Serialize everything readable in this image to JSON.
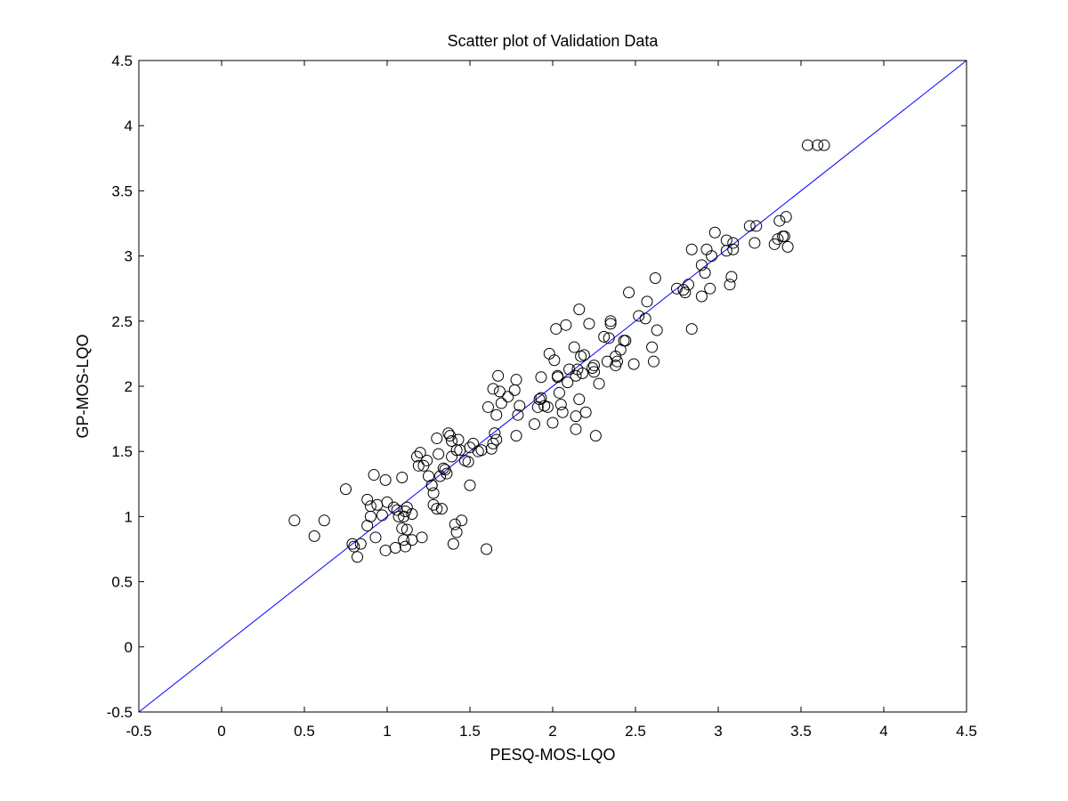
{
  "chart_data": {
    "type": "scatter",
    "title": "Scatter plot of Validation Data",
    "xlabel": "PESQ-MOS-LQO",
    "ylabel": "GP-MOS-LQO",
    "xlim": [
      -0.5,
      4.5
    ],
    "ylim": [
      -0.5,
      4.5
    ],
    "xticks": [
      -0.5,
      0,
      0.5,
      1,
      1.5,
      2,
      2.5,
      3,
      3.5,
      4,
      4.5
    ],
    "yticks": [
      -0.5,
      0,
      0.5,
      1,
      1.5,
      2,
      2.5,
      3,
      3.5,
      4,
      4.5
    ],
    "xtick_labels": [
      "-0.5",
      "0",
      "0.5",
      "1",
      "1.5",
      "2",
      "2.5",
      "3",
      "3.5",
      "4",
      "4.5"
    ],
    "ytick_labels": [
      "-0.5",
      "0",
      "0.5",
      "1",
      "1.5",
      "2",
      "2.5",
      "3",
      "3.5",
      "4",
      "4.5"
    ],
    "grid": false,
    "marker": "open-circle",
    "marker_color": "#000000",
    "reference_line": {
      "from": [
        -0.5,
        -0.5
      ],
      "to": [
        4.5,
        4.5
      ],
      "color": "#0000ff"
    },
    "points": [
      [
        0.44,
        0.97
      ],
      [
        0.56,
        0.85
      ],
      [
        0.62,
        0.97
      ],
      [
        0.75,
        1.21
      ],
      [
        0.79,
        0.79
      ],
      [
        0.8,
        0.77
      ],
      [
        0.82,
        0.69
      ],
      [
        0.84,
        0.79
      ],
      [
        0.88,
        0.93
      ],
      [
        0.88,
        1.13
      ],
      [
        0.9,
        1.08
      ],
      [
        0.9,
        1.0
      ],
      [
        0.92,
        1.32
      ],
      [
        0.93,
        0.84
      ],
      [
        0.94,
        1.09
      ],
      [
        0.97,
        1.01
      ],
      [
        0.99,
        0.74
      ],
      [
        0.99,
        1.28
      ],
      [
        1.0,
        1.11
      ],
      [
        1.04,
        1.07
      ],
      [
        1.05,
        0.76
      ],
      [
        1.06,
        1.05
      ],
      [
        1.07,
        1.0
      ],
      [
        1.09,
        0.91
      ],
      [
        1.09,
        1.3
      ],
      [
        1.1,
        1.0
      ],
      [
        1.1,
        0.82
      ],
      [
        1.11,
        0.77
      ],
      [
        1.11,
        1.04
      ],
      [
        1.12,
        0.9
      ],
      [
        1.12,
        1.07
      ],
      [
        1.15,
        1.02
      ],
      [
        1.15,
        0.82
      ],
      [
        1.18,
        1.46
      ],
      [
        1.19,
        1.39
      ],
      [
        1.2,
        1.49
      ],
      [
        1.21,
        0.84
      ],
      [
        1.22,
        1.39
      ],
      [
        1.24,
        1.43
      ],
      [
        1.25,
        1.31
      ],
      [
        1.27,
        1.24
      ],
      [
        1.27,
        1.24
      ],
      [
        1.28,
        1.18
      ],
      [
        1.28,
        1.09
      ],
      [
        1.3,
        1.6
      ],
      [
        1.3,
        1.06
      ],
      [
        1.31,
        1.48
      ],
      [
        1.32,
        1.31
      ],
      [
        1.33,
        1.06
      ],
      [
        1.34,
        1.37
      ],
      [
        1.35,
        1.36
      ],
      [
        1.36,
        1.33
      ],
      [
        1.37,
        1.64
      ],
      [
        1.38,
        1.62
      ],
      [
        1.39,
        1.58
      ],
      [
        1.39,
        1.46
      ],
      [
        1.4,
        0.79
      ],
      [
        1.41,
        0.94
      ],
      [
        1.42,
        0.88
      ],
      [
        1.42,
        1.51
      ],
      [
        1.43,
        1.59
      ],
      [
        1.44,
        1.51
      ],
      [
        1.45,
        0.97
      ],
      [
        1.47,
        1.43
      ],
      [
        1.49,
        1.42
      ],
      [
        1.5,
        1.53
      ],
      [
        1.5,
        1.24
      ],
      [
        1.52,
        1.56
      ],
      [
        1.55,
        1.5
      ],
      [
        1.57,
        1.51
      ],
      [
        1.6,
        0.75
      ],
      [
        1.61,
        1.84
      ],
      [
        1.63,
        1.52
      ],
      [
        1.64,
        1.56
      ],
      [
        1.64,
        1.98
      ],
      [
        1.65,
        1.64
      ],
      [
        1.66,
        1.59
      ],
      [
        1.66,
        1.78
      ],
      [
        1.67,
        2.08
      ],
      [
        1.68,
        1.96
      ],
      [
        1.69,
        1.87
      ],
      [
        1.73,
        1.92
      ],
      [
        1.77,
        1.97
      ],
      [
        1.78,
        2.05
      ],
      [
        1.78,
        1.62
      ],
      [
        1.79,
        1.78
      ],
      [
        1.8,
        1.85
      ],
      [
        1.89,
        1.71
      ],
      [
        1.91,
        1.84
      ],
      [
        1.92,
        1.9
      ],
      [
        1.93,
        1.91
      ],
      [
        1.93,
        2.07
      ],
      [
        1.95,
        1.85
      ],
      [
        1.97,
        1.84
      ],
      [
        1.98,
        2.25
      ],
      [
        2.0,
        1.72
      ],
      [
        2.01,
        2.2
      ],
      [
        2.02,
        2.44
      ],
      [
        2.03,
        2.07
      ],
      [
        2.03,
        2.08
      ],
      [
        2.04,
        1.95
      ],
      [
        2.05,
        1.86
      ],
      [
        2.06,
        1.8
      ],
      [
        2.08,
        2.47
      ],
      [
        2.09,
        2.03
      ],
      [
        2.1,
        2.13
      ],
      [
        2.13,
        2.3
      ],
      [
        2.14,
        1.77
      ],
      [
        2.14,
        1.67
      ],
      [
        2.14,
        2.08
      ],
      [
        2.15,
        2.13
      ],
      [
        2.16,
        2.59
      ],
      [
        2.16,
        1.9
      ],
      [
        2.17,
        2.23
      ],
      [
        2.18,
        2.1
      ],
      [
        2.19,
        2.24
      ],
      [
        2.2,
        1.8
      ],
      [
        2.22,
        2.48
      ],
      [
        2.24,
        2.14
      ],
      [
        2.25,
        2.11
      ],
      [
        2.25,
        2.16
      ],
      [
        2.26,
        1.62
      ],
      [
        2.28,
        2.02
      ],
      [
        2.31,
        2.38
      ],
      [
        2.33,
        2.19
      ],
      [
        2.34,
        2.37
      ],
      [
        2.35,
        2.48
      ],
      [
        2.35,
        2.5
      ],
      [
        2.38,
        2.16
      ],
      [
        2.38,
        2.23
      ],
      [
        2.39,
        2.19
      ],
      [
        2.41,
        2.28
      ],
      [
        2.43,
        2.35
      ],
      [
        2.44,
        2.35
      ],
      [
        2.46,
        2.72
      ],
      [
        2.49,
        2.17
      ],
      [
        2.52,
        2.54
      ],
      [
        2.56,
        2.52
      ],
      [
        2.57,
        2.65
      ],
      [
        2.6,
        2.3
      ],
      [
        2.61,
        2.19
      ],
      [
        2.62,
        2.83
      ],
      [
        2.63,
        2.43
      ],
      [
        2.75,
        2.75
      ],
      [
        2.79,
        2.74
      ],
      [
        2.8,
        2.72
      ],
      [
        2.82,
        2.78
      ],
      [
        2.84,
        2.44
      ],
      [
        2.84,
        3.05
      ],
      [
        2.9,
        2.93
      ],
      [
        2.9,
        2.69
      ],
      [
        2.92,
        2.87
      ],
      [
        2.93,
        3.05
      ],
      [
        2.95,
        2.75
      ],
      [
        2.96,
        3.0
      ],
      [
        2.98,
        3.18
      ],
      [
        3.05,
        3.04
      ],
      [
        3.05,
        3.12
      ],
      [
        3.07,
        2.78
      ],
      [
        3.08,
        2.84
      ],
      [
        3.09,
        3.05
      ],
      [
        3.09,
        3.1
      ],
      [
        3.19,
        3.23
      ],
      [
        3.22,
        3.1
      ],
      [
        3.23,
        3.23
      ],
      [
        3.34,
        3.09
      ],
      [
        3.36,
        3.13
      ],
      [
        3.37,
        3.27
      ],
      [
        3.39,
        3.15
      ],
      [
        3.4,
        3.15
      ],
      [
        3.41,
        3.3
      ],
      [
        3.42,
        3.07
      ],
      [
        3.54,
        3.85
      ],
      [
        3.6,
        3.85
      ],
      [
        3.64,
        3.85
      ]
    ]
  }
}
